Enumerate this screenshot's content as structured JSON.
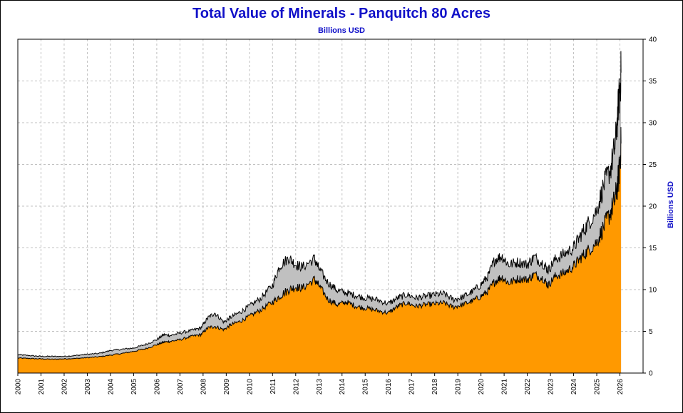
{
  "chart_data": {
    "type": "area",
    "title": "Total Value of Minerals - Panquitch 80 Acres",
    "subtitle": "Billions USD",
    "ylabel": "Billions USD",
    "xlabel": "",
    "xlim": [
      2000,
      2027
    ],
    "ylim": [
      0,
      40
    ],
    "y_ticks": [
      "0",
      "5",
      "10",
      "15",
      "20",
      "25",
      "30",
      "35",
      "40"
    ],
    "x_ticks": [
      "2000",
      "2001",
      "2002",
      "2003",
      "2004",
      "2005",
      "2006",
      "2007",
      "2008",
      "2009",
      "2010",
      "2011",
      "2012",
      "2013",
      "2014",
      "2015",
      "2016",
      "2017",
      "2018",
      "2019",
      "2020",
      "2021",
      "2022",
      "2023",
      "2024",
      "2025",
      "2026"
    ],
    "grid": true,
    "y_axis_side": "right",
    "x": [
      2000.0,
      2000.5,
      2001.0,
      2001.5,
      2002.0,
      2002.5,
      2003.0,
      2003.5,
      2004.0,
      2004.5,
      2005.0,
      2005.5,
      2006.0,
      2006.3,
      2006.6,
      2007.0,
      2007.5,
      2007.9,
      2008.2,
      2008.5,
      2008.9,
      2009.2,
      2009.6,
      2010.0,
      2010.5,
      2011.0,
      2011.3,
      2011.7,
      2012.0,
      2012.3,
      2012.8,
      2013.0,
      2013.4,
      2013.8,
      2014.2,
      2014.6,
      2015.0,
      2015.5,
      2016.0,
      2016.4,
      2016.8,
      2017.2,
      2017.6,
      2018.0,
      2018.4,
      2018.8,
      2019.2,
      2019.6,
      2020.0,
      2020.3,
      2020.6,
      2020.9,
      2021.2,
      2021.6,
      2022.0,
      2022.3,
      2022.7,
      2022.9,
      2023.2,
      2023.6,
      2024.0,
      2024.3,
      2024.6,
      2025.0,
      2025.3,
      2025.6,
      2025.8,
      2025.95,
      2026.05
    ],
    "series": [
      {
        "values": [
          1.8,
          1.75,
          1.7,
          1.65,
          1.7,
          1.75,
          1.85,
          1.95,
          2.15,
          2.35,
          2.6,
          2.9,
          3.4,
          3.7,
          3.8,
          4.0,
          4.4,
          4.6,
          5.4,
          5.6,
          5.2,
          5.8,
          6.2,
          6.8,
          7.6,
          8.5,
          9.2,
          10.0,
          10.3,
          10.2,
          11.2,
          10.5,
          8.8,
          8.2,
          8.5,
          8.0,
          7.8,
          7.5,
          7.2,
          8.0,
          8.4,
          8.0,
          8.2,
          8.3,
          8.4,
          7.9,
          8.2,
          8.6,
          9.2,
          9.8,
          11.0,
          11.5,
          10.8,
          11.3,
          11.2,
          11.8,
          11.3,
          10.5,
          11.6,
          12.0,
          12.8,
          13.8,
          14.6,
          15.7,
          17.5,
          19.3,
          21.0,
          23.5,
          27.5
        ]
      },
      {
        "values": [
          2.2,
          2.1,
          2.0,
          2.0,
          2.0,
          2.1,
          2.25,
          2.35,
          2.7,
          2.85,
          3.0,
          3.4,
          4.0,
          4.6,
          4.5,
          4.8,
          5.1,
          5.4,
          6.6,
          7.2,
          6.1,
          6.7,
          7.3,
          8.0,
          9.0,
          10.5,
          12.8,
          13.8,
          13.0,
          12.7,
          13.7,
          12.5,
          10.8,
          9.9,
          9.6,
          9.3,
          9.0,
          8.8,
          8.3,
          9.0,
          9.4,
          9.0,
          9.2,
          9.4,
          9.5,
          8.8,
          9.1,
          9.7,
          10.6,
          11.6,
          13.6,
          14.0,
          13.0,
          13.3,
          13.0,
          13.9,
          13.1,
          12.3,
          13.6,
          14.3,
          15.0,
          16.5,
          17.8,
          19.5,
          22.5,
          24.5,
          27.5,
          32.5,
          36.0
        ]
      }
    ],
    "colors": {
      "lower_fill": "#ff9900",
      "band_fill": "#c0c0c0",
      "line": "#000000",
      "grid": "#c0c0c0",
      "title": "#1010c8"
    }
  }
}
